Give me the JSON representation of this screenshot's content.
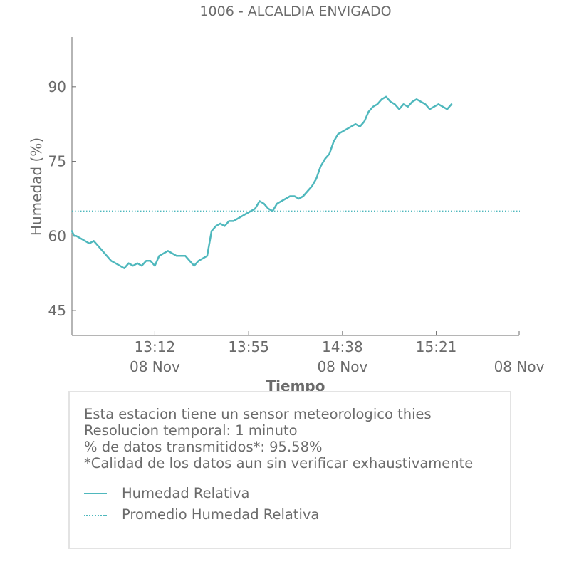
{
  "colors": {
    "series": "#4fb8bd",
    "text": "#6b6b6b",
    "axis": "#6b6b6b",
    "box_border": "#e3e3e3"
  },
  "chart_data": {
    "type": "line",
    "title": "1006 - ALCALDIA ENVIGADO",
    "xlabel": "Tiempo",
    "ylabel": "Humedad (%)",
    "ylim": [
      40,
      100
    ],
    "yticks": [
      45,
      60,
      75,
      90
    ],
    "xlim": [
      "12:34",
      "15:59"
    ],
    "xticks": [
      {
        "time": "13:12",
        "label": "13:12",
        "date": "08 Nov"
      },
      {
        "time": "13:55",
        "label": "13:55",
        "date": ""
      },
      {
        "time": "14:38",
        "label": "14:38",
        "date": "08 Nov"
      },
      {
        "time": "15:21",
        "label": "15:21",
        "date": ""
      },
      {
        "time": "15:59",
        "label": "",
        "date": "08 Nov"
      }
    ],
    "grid": false,
    "legend": "bottom",
    "series": [
      {
        "name": "Humedad Relativa",
        "style": "solid",
        "x": [
          "12:34",
          "12:35",
          "12:36",
          "12:38",
          "12:40",
          "12:42",
          "12:44",
          "12:46",
          "12:48",
          "12:50",
          "12:52",
          "12:54",
          "12:56",
          "12:58",
          "13:00",
          "13:02",
          "13:04",
          "13:06",
          "13:08",
          "13:10",
          "13:12",
          "13:14",
          "13:16",
          "13:18",
          "13:20",
          "13:22",
          "13:24",
          "13:26",
          "13:28",
          "13:30",
          "13:32",
          "13:34",
          "13:36",
          "13:38",
          "13:40",
          "13:42",
          "13:44",
          "13:46",
          "13:48",
          "13:50",
          "13:52",
          "13:54",
          "13:56",
          "13:58",
          "14:00",
          "14:02",
          "14:04",
          "14:06",
          "14:08",
          "14:10",
          "14:12",
          "14:14",
          "14:16",
          "14:18",
          "14:20",
          "14:22",
          "14:24",
          "14:26",
          "14:28",
          "14:30",
          "14:32",
          "14:34",
          "14:36",
          "14:38",
          "14:40",
          "14:42",
          "14:44",
          "14:46",
          "14:48",
          "14:50",
          "14:52",
          "14:54",
          "14:56",
          "14:58",
          "15:00",
          "15:02",
          "15:04",
          "15:06",
          "15:08",
          "15:10",
          "15:12",
          "15:14",
          "15:16",
          "15:18",
          "15:20",
          "15:22",
          "15:24",
          "15:26",
          "15:28"
        ],
        "values": [
          61,
          60,
          60,
          59.5,
          59,
          58.5,
          59,
          58,
          57,
          56,
          55,
          54.5,
          54,
          53.5,
          54.5,
          54,
          54.5,
          54,
          55,
          55,
          54,
          56,
          56.5,
          57,
          56.5,
          56,
          56,
          56,
          55,
          54,
          55,
          55.5,
          56,
          61,
          62,
          62.5,
          62,
          63,
          63,
          63.5,
          64,
          64.5,
          65,
          65.5,
          67,
          66.5,
          65.5,
          65,
          66.5,
          67,
          67.5,
          68,
          68,
          67.5,
          68,
          69,
          70,
          71.5,
          74,
          75.5,
          76.5,
          79,
          80.5,
          81,
          81.5,
          82,
          82.5,
          82,
          83,
          85,
          86,
          86.5,
          87.5,
          88,
          87,
          86.5,
          85.5,
          86.5,
          86,
          87,
          87.5,
          87,
          86.5,
          85.5,
          86,
          86.5,
          86,
          85.5,
          86.5
        ]
      },
      {
        "name": "Promedio Humedad Relativa",
        "style": "dotted",
        "x": [
          "12:34",
          "15:59"
        ],
        "values": [
          65,
          65
        ]
      }
    ]
  },
  "info": {
    "line1": "Esta estacion tiene un sensor meteorologico thies",
    "line2": "Resolucion temporal: 1 minuto",
    "line3": "% de datos transmitidos*: 95.58%",
    "line4": "*Calidad de los datos aun sin verificar exhaustivamente"
  },
  "legend": {
    "items": [
      {
        "label": "Humedad Relativa",
        "style": "solid"
      },
      {
        "label": "Promedio Humedad Relativa",
        "style": "dotted"
      }
    ]
  }
}
